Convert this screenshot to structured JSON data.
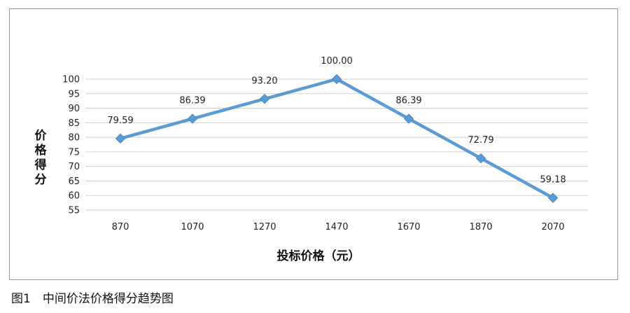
{
  "caption": "图1　中间价法价格得分趋势图",
  "chart_data": {
    "type": "line",
    "title": "",
    "xlabel": "投标价格（元）",
    "ylabel": "价格得分",
    "categories": [
      "870",
      "1070",
      "1270",
      "1470",
      "1670",
      "1870",
      "2070"
    ],
    "series": [
      {
        "values": [
          79.59,
          86.39,
          93.2,
          100.0,
          86.39,
          72.79,
          59.18
        ],
        "labels": [
          "79.59",
          "86.39",
          "93.20",
          "100.00",
          "86.39",
          "72.79",
          "59.18"
        ]
      }
    ],
    "ylim": [
      55,
      100
    ],
    "yticks": [
      55,
      60,
      65,
      70,
      75,
      80,
      85,
      90,
      95,
      100
    ],
    "grid": true,
    "legend": "none",
    "line_color": "#5b9bd5"
  }
}
